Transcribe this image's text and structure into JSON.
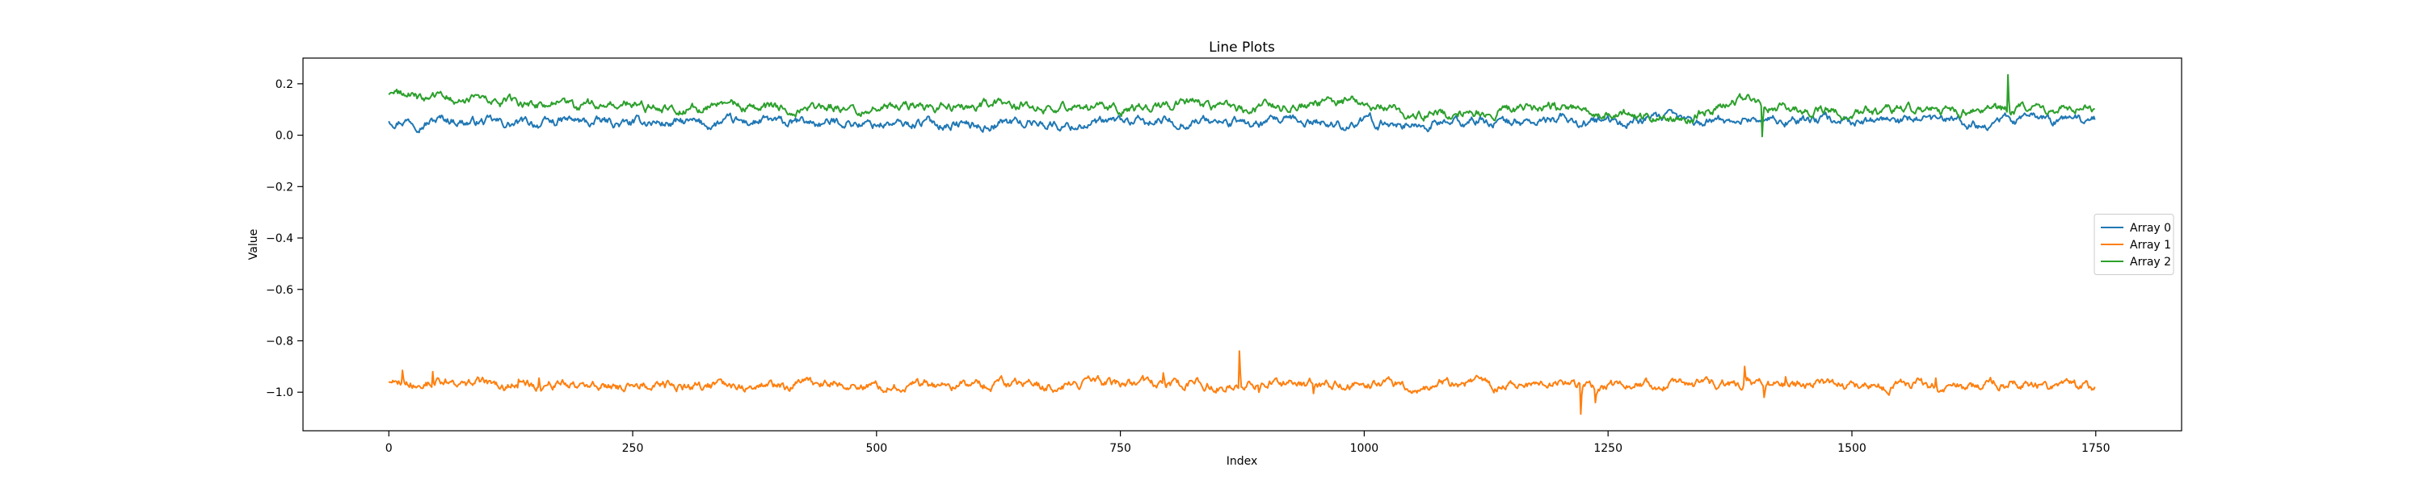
{
  "chart_data": {
    "type": "line",
    "title": "Line Plots",
    "xlabel": "Index",
    "ylabel": "Value",
    "xlim": [
      -88,
      1838
    ],
    "ylim": [
      -1.15,
      0.3
    ],
    "x_ticks": [
      0,
      250,
      500,
      750,
      1000,
      1250,
      1500,
      1750
    ],
    "y_ticks": [
      0.2,
      0.0,
      -0.2,
      -0.4,
      -0.6,
      -0.8,
      -1.0
    ],
    "y_tick_labels": [
      "0.2",
      "0.0",
      "−0.2",
      "−0.4",
      "−0.6",
      "−0.8",
      "−1.0"
    ],
    "grid": false,
    "legend_position": "center-right",
    "n_points": 1750,
    "series": [
      {
        "name": "Array 0",
        "color": "#1f77b4",
        "base": 0.05,
        "noise": 0.012,
        "anchors": [
          [
            0,
            0.06
          ],
          [
            30,
            0.055
          ],
          [
            50,
            0.065
          ],
          [
            100,
            0.045
          ],
          [
            200,
            0.05
          ],
          [
            300,
            0.045
          ],
          [
            400,
            0.05
          ],
          [
            500,
            0.045
          ],
          [
            570,
            0.045
          ],
          [
            600,
            0.04
          ],
          [
            640,
            0.05
          ],
          [
            700,
            0.04
          ],
          [
            800,
            0.055
          ],
          [
            900,
            0.045
          ],
          [
            1000,
            0.05
          ],
          [
            1050,
            0.04
          ],
          [
            1100,
            0.05
          ],
          [
            1200,
            0.055
          ],
          [
            1250,
            0.05
          ],
          [
            1300,
            0.06
          ],
          [
            1350,
            0.055
          ],
          [
            1400,
            0.06
          ],
          [
            1500,
            0.055
          ],
          [
            1600,
            0.05
          ],
          [
            1700,
            0.06
          ],
          [
            1750,
            0.065
          ]
        ],
        "spikes": []
      },
      {
        "name": "Array 1",
        "color": "#ff7f0e",
        "base": -0.97,
        "noise": 0.012,
        "anchors": [
          [
            0,
            -0.955
          ],
          [
            100,
            -0.97
          ],
          [
            250,
            -0.975
          ],
          [
            500,
            -0.97
          ],
          [
            750,
            -0.97
          ],
          [
            1000,
            -0.97
          ],
          [
            1250,
            -0.97
          ],
          [
            1500,
            -0.97
          ],
          [
            1750,
            -0.975
          ]
        ],
        "spikes": [
          [
            14,
            -0.915
          ],
          [
            45,
            -0.92
          ],
          [
            133,
            -0.95
          ],
          [
            154,
            -0.945
          ],
          [
            794,
            -0.925
          ],
          [
            872,
            -0.84
          ],
          [
            892,
            -1.0
          ],
          [
            948,
            -1.005
          ],
          [
            1222,
            -1.085
          ],
          [
            1237,
            -1.04
          ],
          [
            1390,
            -0.9
          ],
          [
            1410,
            -1.02
          ],
          [
            1432,
            -0.94
          ],
          [
            1586,
            -0.945
          ]
        ]
      },
      {
        "name": "Array 2",
        "color": "#2ca02c",
        "base": 0.11,
        "noise": 0.012,
        "anchors": [
          [
            0,
            0.16
          ],
          [
            20,
            0.16
          ],
          [
            40,
            0.14
          ],
          [
            70,
            0.145
          ],
          [
            100,
            0.13
          ],
          [
            150,
            0.12
          ],
          [
            200,
            0.115
          ],
          [
            300,
            0.11
          ],
          [
            400,
            0.11
          ],
          [
            500,
            0.105
          ],
          [
            600,
            0.11
          ],
          [
            650,
            0.12
          ],
          [
            700,
            0.11
          ],
          [
            750,
            0.1
          ],
          [
            800,
            0.115
          ],
          [
            850,
            0.12
          ],
          [
            900,
            0.1
          ],
          [
            960,
            0.13
          ],
          [
            1000,
            0.12
          ],
          [
            1050,
            0.08
          ],
          [
            1100,
            0.09
          ],
          [
            1150,
            0.1
          ],
          [
            1200,
            0.105
          ],
          [
            1250,
            0.1
          ],
          [
            1290,
            0.075
          ],
          [
            1330,
            0.07
          ],
          [
            1360,
            0.1
          ],
          [
            1390,
            0.14
          ],
          [
            1420,
            0.12
          ],
          [
            1450,
            0.1
          ],
          [
            1500,
            0.09
          ],
          [
            1550,
            0.095
          ],
          [
            1600,
            0.095
          ],
          [
            1650,
            0.1
          ],
          [
            1700,
            0.1
          ],
          [
            1740,
            0.11
          ],
          [
            1750,
            0.09
          ]
        ],
        "spikes": [
          [
            1408,
            -0.005
          ],
          [
            1660,
            0.235
          ]
        ]
      }
    ]
  }
}
